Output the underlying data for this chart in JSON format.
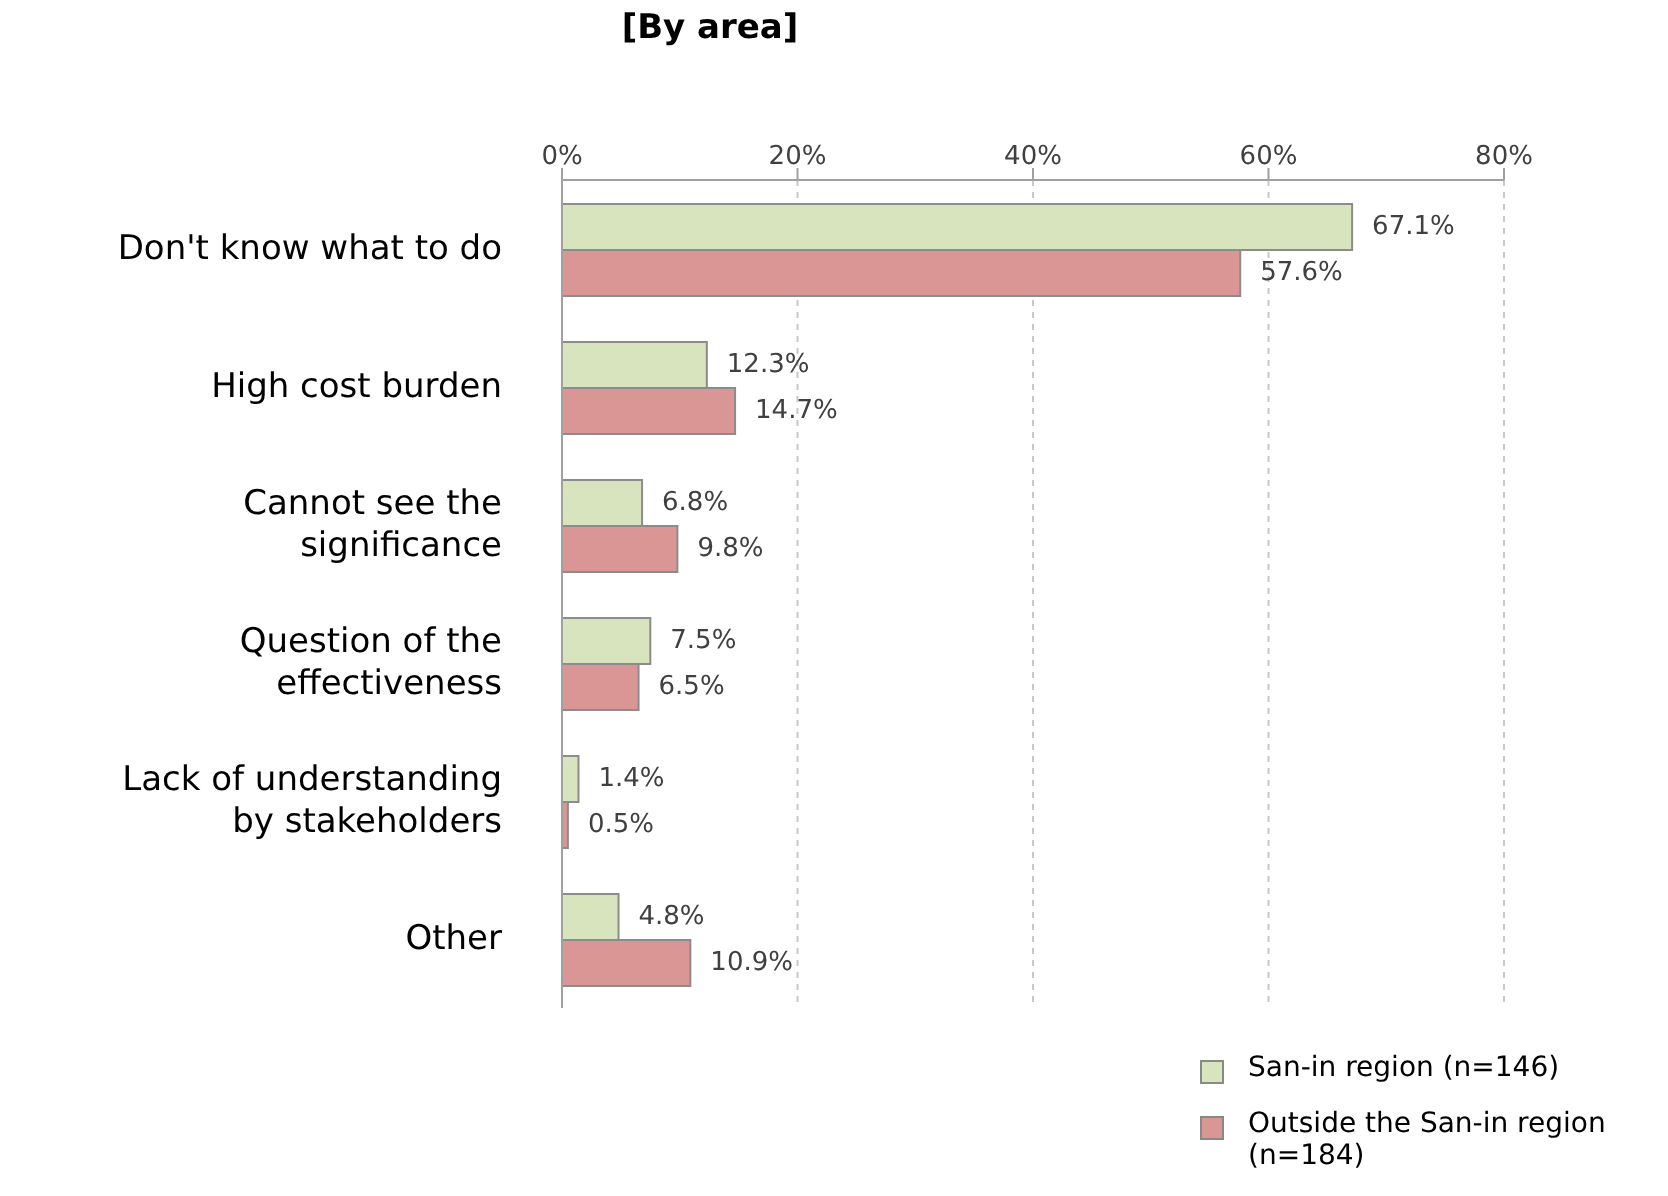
{
  "chart_data": {
    "type": "bar",
    "orientation": "horizontal",
    "title": "[By area]",
    "categories": [
      "Don't know what to do",
      "High cost burden",
      "Cannot see the significance",
      "Question of the effectiveness",
      "Lack of understanding by stakeholders",
      "Other"
    ],
    "series": [
      {
        "name": "San-in region (n=146)",
        "color": "#d7e4bd",
        "values": [
          67.1,
          12.3,
          6.8,
          7.5,
          1.4,
          4.8
        ],
        "value_labels": [
          "67.1%",
          "12.3%",
          "6.8%",
          "7.5%",
          "1.4%",
          "4.8%"
        ]
      },
      {
        "name": "Outside the San-in region (n=184)",
        "color": "#d99694",
        "values": [
          57.6,
          14.7,
          9.8,
          6.5,
          0.5,
          10.9
        ],
        "value_labels": [
          "57.6%",
          "14.7%",
          "9.8%",
          "6.5%",
          "0.5%",
          "10.9%"
        ]
      }
    ],
    "xlim": [
      0,
      80
    ],
    "xticks": [
      {
        "value": 0,
        "label": "0%"
      },
      {
        "value": 20,
        "label": "20%"
      },
      {
        "value": 40,
        "label": "40%"
      },
      {
        "value": 60,
        "label": "60%"
      },
      {
        "value": 80,
        "label": "80%"
      }
    ],
    "grid": "x",
    "legend": "bottom right"
  }
}
